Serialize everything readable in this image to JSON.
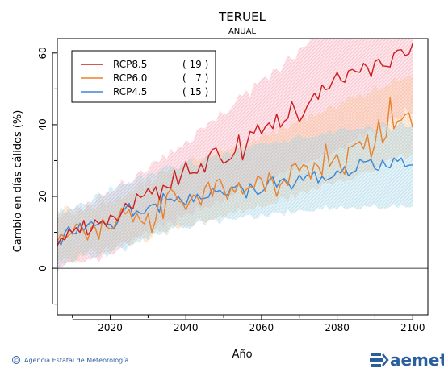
{
  "chart_data": {
    "type": "line",
    "title": "TERUEL",
    "subtitle": "ANUAL",
    "xlabel": "Año",
    "ylabel": "Cambio en días cálidos (%)",
    "xlim": [
      2006,
      2104
    ],
    "ylim": [
      -13,
      64
    ],
    "x_ticks": [
      2020,
      2040,
      2060,
      2080,
      2100
    ],
    "x_tick_labels": [
      "2020",
      "2040",
      "2060",
      "2080",
      "2100"
    ],
    "y_ticks": [
      0,
      20,
      40,
      60
    ],
    "y_tick_labels": [
      "0",
      "20",
      "40",
      "60"
    ],
    "reference_line": 0,
    "legend_position": "top-left",
    "grid": false,
    "x_start": 2006,
    "x_end": 2100,
    "series": [
      {
        "name": "RCP8.5",
        "count_label": "( 19 )",
        "color": "#cc1f1f",
        "band_color": "#f6a6b6",
        "values": [
          6.3,
          8.4,
          7.9,
          10.8,
          10.0,
          11.3,
          10.0,
          13.3,
          9.3,
          10.5,
          13.5,
          12.4,
          13.3,
          11.6,
          14.8,
          14.3,
          13.2,
          15.4,
          18.1,
          17.2,
          16.6,
          20.7,
          19.7,
          20.3,
          22.2,
          20.7,
          22.7,
          19.2,
          23.1,
          22.6,
          22.3,
          27.3,
          23.2,
          26.6,
          29.7,
          26.4,
          26.6,
          26.5,
          29.1,
          26.8,
          31.2,
          33.1,
          33.5,
          30.8,
          29.2,
          29.9,
          30.6,
          32.4,
          37.1,
          30.2,
          34.2,
          38.1,
          37.6,
          40.1,
          37.4,
          39.4,
          40.5,
          38.9,
          43.0,
          39.3,
          40.9,
          41.8,
          46.5,
          43.8,
          40.8,
          42.5,
          45.0,
          46.8,
          48.8,
          47.1,
          51.1,
          49.8,
          50.2,
          52.6,
          54.6,
          52.4,
          51.8,
          55.0,
          55.4,
          54.8,
          54.6,
          57.1,
          56.1,
          53.3,
          57.6,
          58.3,
          56.4,
          56.3,
          56.1,
          59.9,
          60.8,
          60.9,
          59.3,
          59.7,
          62.7
        ],
        "band_lower": [
          0.6,
          -0.1,
          1.3,
          1.5,
          1.8,
          2.3,
          1.6,
          1.6,
          2.5,
          2.3,
          3.2,
          1.8,
          3.3,
          4.7,
          3.8,
          3.8,
          5.3,
          5.7,
          7.0,
          6.6,
          8.6,
          8.6,
          8.2,
          10.5,
          9.9,
          10.0,
          11.0,
          12.8,
          11.3,
          12.8,
          13.3,
          11.5,
          14.8,
          14.2,
          15.4,
          15.1,
          14.9,
          17.7,
          16.0,
          17.2,
          16.8,
          17.1,
          19.1,
          18.1,
          18.7,
          20.6,
          20.2,
          20.6,
          22.9,
          21.7,
          21.6,
          23.2,
          22.4,
          25.0,
          23.1,
          24.2,
          24.9,
          23.9,
          25.7,
          26.7,
          26.4,
          27.6,
          26.8,
          28.6,
          28.4,
          29.6,
          29.2,
          29.9,
          30.1,
          30.5,
          31.5,
          31.5,
          31.3,
          32.5,
          33.1,
          33.8,
          33.1,
          34.9,
          35.4,
          35.6,
          37.4,
          36.3,
          38.3,
          38.6,
          37.4,
          39.2,
          39.3,
          39.4,
          41.7,
          42.1,
          41.6,
          41.5,
          44.9,
          43.1,
          43.0
        ],
        "band_upper": [
          13.8,
          14.3,
          15.3,
          16.1,
          14.6,
          17.7,
          16.7,
          15.9,
          18.8,
          17.8,
          18.3,
          21.2,
          19.6,
          21.3,
          20.7,
          21.6,
          22.3,
          24.9,
          23.3,
          23.5,
          24.1,
          26.2,
          27.4,
          26.3,
          27.2,
          29.5,
          30.0,
          29.6,
          31.8,
          30.3,
          33.4,
          31.9,
          34.0,
          33.5,
          35.8,
          34.9,
          35.6,
          38.6,
          39.2,
          38.9,
          40.7,
          41.3,
          41.0,
          43.9,
          42.8,
          43.3,
          44.6,
          45.9,
          48.5,
          48.0,
          49.8,
          47.6,
          51.8,
          51.3,
          52.8,
          53.4,
          52.3,
          55.4,
          55.5,
          54.4,
          57.1,
          59.4,
          58.3,
          58.2,
          61.6,
          61.7,
          62.0,
          64.0,
          64.0,
          64.0,
          64.0,
          64.0,
          64.0,
          64.0,
          64.0,
          64.0,
          64.0,
          64.0,
          64.0,
          64.0,
          64.0,
          64.0,
          64.0,
          64.0,
          64.0,
          64.0,
          64.0,
          64.0,
          64.0,
          64.0,
          64.0,
          64.0,
          64.0,
          64.0,
          64.0
        ]
      },
      {
        "name": "RCP6.0",
        "count_label": "(   7 )",
        "color": "#e8822c",
        "band_color": "#f7c596",
        "values": [
          7.5,
          9.6,
          8.3,
          9.2,
          10.0,
          12.3,
          12.0,
          10.3,
          7.9,
          11.4,
          11.4,
          8.1,
          13.7,
          11.6,
          10.9,
          11.4,
          13.9,
          16.7,
          15.1,
          16.3,
          12.9,
          15.3,
          13.2,
          12.4,
          15.2,
          10.0,
          13.4,
          19.9,
          13.8,
          20.5,
          22.1,
          21.0,
          18.6,
          18.4,
          16.3,
          18.6,
          20.4,
          19.9,
          17.6,
          22.4,
          24.0,
          19.9,
          24.2,
          24.9,
          22.1,
          19.1,
          22.6,
          21.1,
          23.9,
          20.7,
          21.9,
          22.8,
          22.3,
          25.7,
          24.9,
          21.5,
          26.6,
          24.3,
          20.0,
          23.3,
          24.6,
          23.1,
          28.6,
          29.2,
          27.1,
          28.8,
          28.4,
          24.9,
          29.4,
          28.4,
          26.0,
          34.6,
          28.4,
          30.2,
          31.8,
          27.8,
          26.2,
          33.6,
          34.0,
          34.7,
          35.3,
          33.3,
          37.3,
          30.8,
          34.6,
          41.4,
          34.9,
          36.8,
          47.5,
          38.9,
          41.0,
          41.3,
          42.8,
          43.3,
          39.2
        ],
        "band_lower": [
          2.7,
          1.8,
          3.2,
          1.5,
          1.7,
          1.4,
          3.7,
          3.2,
          4.6,
          5.6,
          4.7,
          3.5,
          4.4,
          6.4,
          4.6,
          5.6,
          6.8,
          7.1,
          7.6,
          6.2,
          6.7,
          8.4,
          9.5,
          7.4,
          7.5,
          8.6,
          10.7,
          10.2,
          10.4,
          9.0,
          11.7,
          11.9,
          10.7,
          11.8,
          11.7,
          11.6,
          11.7,
          13.9,
          13.6,
          11.8,
          13.5,
          13.5,
          13.6,
          14.9,
          13.5,
          15.0,
          15.8,
          15.2,
          16.9,
          15.1,
          16.2,
          16.5,
          16.2,
          17.8,
          16.8,
          17.1,
          17.6,
          18.1,
          18.0,
          19.8,
          19.7,
          18.6,
          20.9,
          19.1,
          21.2,
          21.7,
          20.7,
          22.1,
          22.3,
          21.7,
          23.4,
          23.8,
          23.7,
          23.5,
          24.4,
          24.6,
          24.0,
          24.8,
          24.5,
          25.6,
          26.5,
          26.8,
          27.1,
          26.5,
          27.3,
          28.6,
          28.7,
          30.0,
          30.6,
          29.0,
          31.2,
          32.0,
          30.5,
          30.8,
          32.0
        ],
        "band_upper": [
          16.0,
          15.2,
          17.5,
          17.2,
          16.3,
          14.1,
          17.5,
          15.5,
          18.0,
          16.7,
          16.5,
          17.5,
          19.2,
          17.2,
          19.2,
          17.8,
          20.3,
          19.2,
          20.2,
          21.1,
          21.3,
          22.7,
          24.6,
          22.2,
          25.7,
          23.6,
          24.6,
          27.3,
          27.3,
          26.5,
          27.8,
          28.2,
          27.4,
          28.8,
          28.7,
          30.4,
          31.1,
          29.8,
          30.6,
          30.4,
          31.5,
          31.6,
          31.8,
          33.5,
          32.3,
          33.0,
          33.2,
          34.2,
          33.1,
          33.8,
          34.1,
          34.8,
          36.1,
          35.0,
          37.3,
          37.9,
          36.8,
          38.6,
          37.2,
          39.9,
          39.1,
          38.7,
          40.2,
          40.6,
          42.1,
          42.5,
          41.0,
          43.6,
          42.4,
          43.1,
          43.3,
          43.9,
          45.6,
          44.9,
          44.3,
          46.5,
          46.1,
          48.2,
          47.5,
          47.5,
          48.8,
          47.3,
          48.9,
          49.1,
          51.2,
          49.5,
          50.2,
          50.9,
          51.1,
          53.3,
          51.9,
          52.7,
          52.9,
          53.9,
          52.9
        ]
      },
      {
        "name": "RCP4.5",
        "count_label": "( 15 )",
        "color": "#3a87d6",
        "band_color": "#9fd3e6",
        "values": [
          7.8,
          6.5,
          10.0,
          11.6,
          9.5,
          9.8,
          12.5,
          10.5,
          12.1,
          12.9,
          11.9,
          12.4,
          12.8,
          12.3,
          12.2,
          10.9,
          12.9,
          15.7,
          16.7,
          18.1,
          14.6,
          16.0,
          15.3,
          15.3,
          17.0,
          17.7,
          17.9,
          15.6,
          20.8,
          19.1,
          19.3,
          18.6,
          20.0,
          18.5,
          17.6,
          20.6,
          18.5,
          20.6,
          19.3,
          19.5,
          19.8,
          22.3,
          21.3,
          21.7,
          20.6,
          20.4,
          22.6,
          22.6,
          23.6,
          22.2,
          19.6,
          23.6,
          22.1,
          20.5,
          21.2,
          22.2,
          24.6,
          25.4,
          22.6,
          24.5,
          25.0,
          23.8,
          22.1,
          23.9,
          26.0,
          24.5,
          26.0,
          25.5,
          27.0,
          23.8,
          25.6,
          24.5,
          25.0,
          25.5,
          27.2,
          26.5,
          28.3,
          25.8,
          26.7,
          27.2,
          30.3,
          29.6,
          29.8,
          30.3,
          27.7,
          27.3,
          30.1,
          28.3,
          28.0,
          30.7,
          29.8,
          30.7,
          28.3,
          28.7,
          28.8
        ],
        "band_lower": [
          -1.6,
          1.7,
          0.6,
          3.0,
          1.3,
          2.5,
          4.5,
          3.4,
          4.1,
          3.1,
          3.0,
          3.2,
          4.9,
          3.1,
          4.3,
          4.9,
          6.1,
          5.7,
          4.6,
          6.3,
          6.6,
          7.5,
          7.4,
          8.6,
          7.9,
          9.9,
          9.7,
          9.2,
          10.1,
          9.8,
          11.1,
          11.3,
          12.5,
          11.2,
          11.3,
          11.0,
          11.7,
          12.9,
          13.1,
          12.6,
          13.4,
          13.6,
          13.6,
          12.0,
          14.6,
          13.7,
          13.8,
          13.4,
          14.1,
          14.1,
          14.8,
          15.0,
          13.7,
          13.8,
          15.2,
          14.5,
          14.3,
          15.6,
          15.5,
          15.6,
          14.5,
          16.4,
          15.0,
          15.7,
          16.3,
          16.0,
          15.9,
          15.8,
          15.9,
          16.8,
          16.3,
          17.9,
          16.0,
          16.9,
          16.5,
          17.5,
          16.6,
          16.6,
          17.1,
          16.7,
          16.3,
          17.4,
          17.2,
          17.1,
          17.9,
          16.3,
          16.8,
          16.6,
          17.2,
          17.8,
          16.7,
          17.7,
          17.0,
          17.0,
          17.2
        ],
        "band_upper": [
          13.7,
          17.2,
          15.2,
          16.8,
          16.6,
          17.1,
          18.3,
          18.0,
          17.4,
          18.5,
          20.5,
          20.8,
          20.4,
          20.0,
          23.2,
          21.5,
          23.1,
          23.6,
          23.4,
          24.0,
          23.6,
          25.2,
          26.4,
          24.7,
          26.4,
          26.6,
          26.1,
          27.3,
          28.2,
          28.6,
          28.7,
          27.9,
          27.3,
          29.4,
          28.8,
          31.0,
          28.8,
          28.6,
          29.3,
          31.2,
          31.5,
          30.7,
          31.9,
          30.3,
          32.0,
          32.6,
          31.3,
          32.3,
          33.6,
          32.8,
          33.9,
          33.4,
          34.7,
          34.5,
          35.1,
          35.0,
          34.5,
          35.1,
          35.4,
          34.7,
          35.7,
          34.8,
          35.9,
          36.8,
          37.3,
          36.0,
          36.2,
          36.4,
          36.7,
          36.9,
          37.8,
          37.2,
          38.5,
          37.4,
          38.5,
          39.4,
          38.9,
          38.6,
          38.4,
          38.9,
          38.9,
          38.8,
          39.8,
          39.3,
          38.3,
          39.5,
          40.9,
          40.1,
          38.5,
          38.6,
          39.8,
          41.2,
          39.5,
          39.2,
          39.8
        ]
      }
    ]
  },
  "footer": {
    "copyright_symbol": "©",
    "agency": "Agencia Estatal de Meteorología",
    "brand": "aemet"
  }
}
